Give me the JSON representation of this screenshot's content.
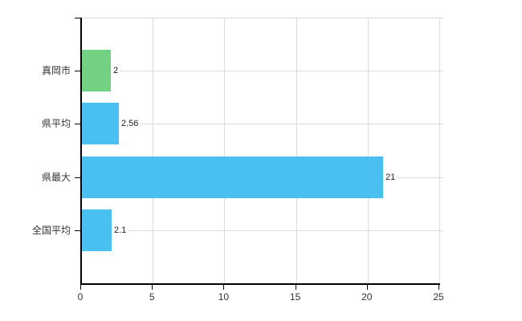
{
  "chart_data": {
    "type": "bar",
    "orientation": "horizontal",
    "title": "",
    "xlabel": "",
    "ylabel": "",
    "categories": [
      "真岡市",
      "県平均",
      "県最大",
      "全国平均"
    ],
    "values": [
      2,
      2.56,
      21,
      2.1
    ],
    "value_labels": [
      "2",
      "2.56",
      "21",
      "2.1"
    ],
    "bar_colors": [
      "#72d183",
      "#49c0ef",
      "#49c0ef",
      "#49c0ef"
    ],
    "x_ticks": [
      0,
      5,
      10,
      15,
      20,
      25
    ],
    "x_tick_labels": [
      "0",
      "5",
      "10",
      "15",
      "20",
      "25"
    ],
    "xlim": [
      0,
      25
    ],
    "grid": true,
    "legend": false,
    "colors": {
      "axis": "#000000",
      "grid": "#dcdcdc",
      "text": "#333333",
      "background": "#ffffff"
    }
  }
}
